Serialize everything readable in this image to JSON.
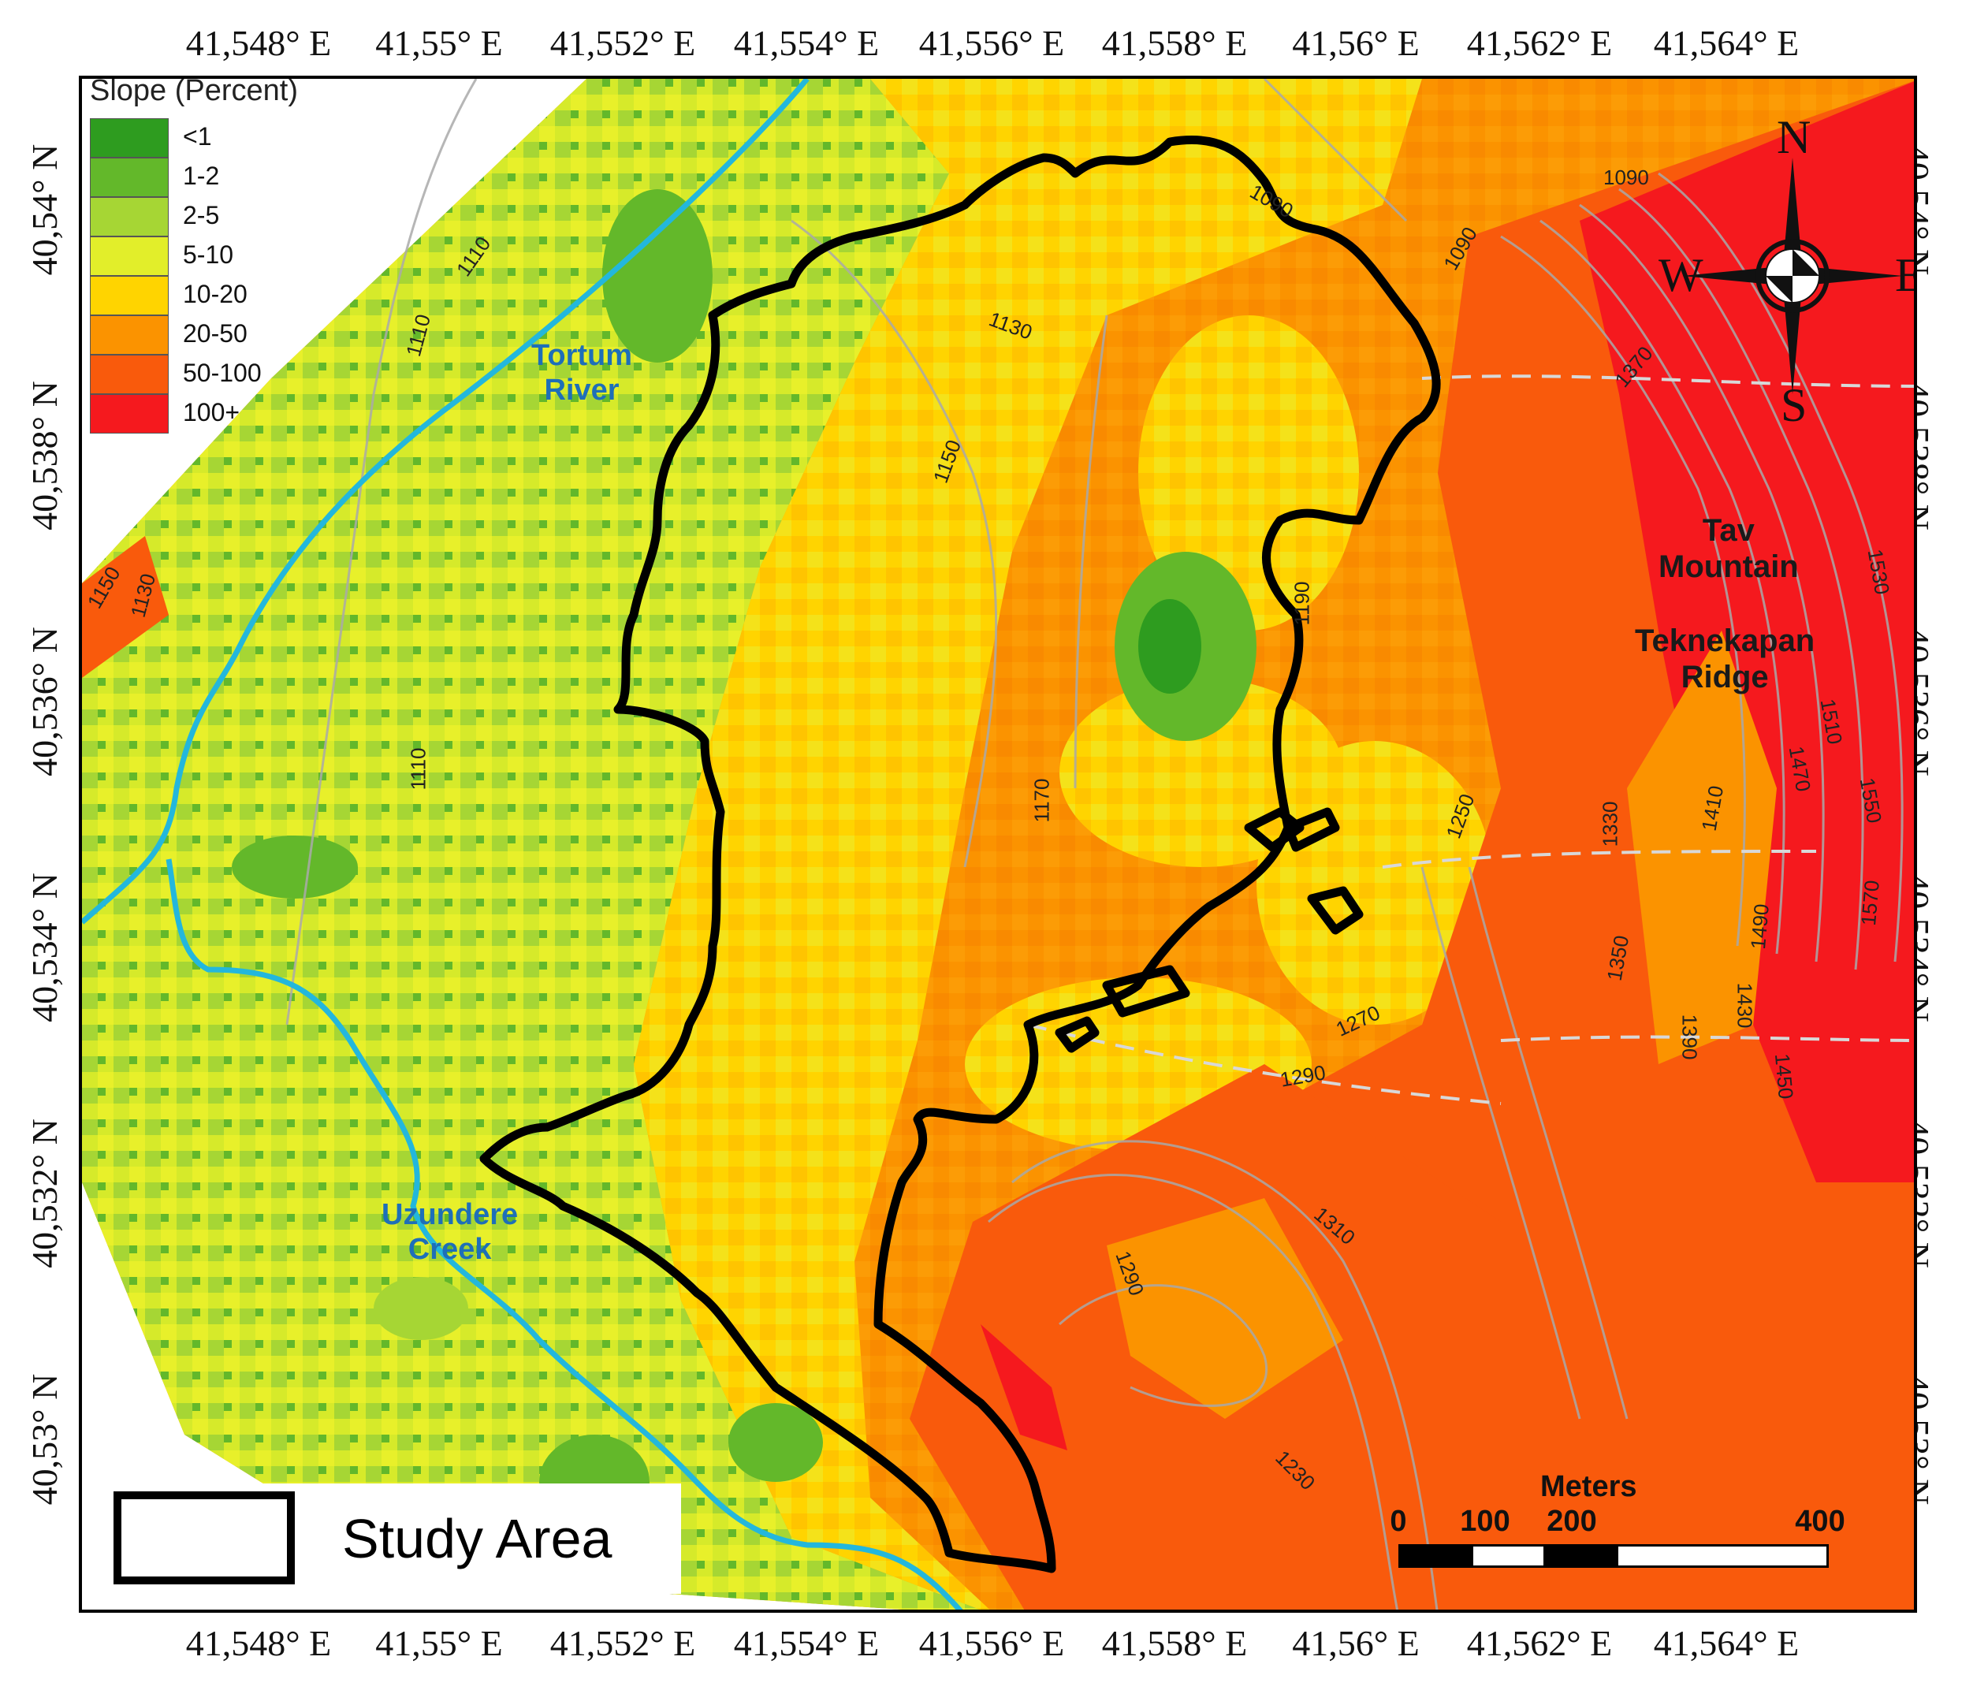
{
  "coordinates": {
    "longitudes": [
      "41,548° E",
      "41,55° E",
      "41,552° E",
      "41,554° E",
      "41,556° E",
      "41,558° E",
      "41,56° E",
      "41,562° E",
      "41,564° E"
    ],
    "latitudes": [
      "40,54° N",
      "40,538° N",
      "40,536° N",
      "40,534° N",
      "40,532° N",
      "40,53° N"
    ]
  },
  "legend": {
    "title": "Slope (Percent)",
    "classes": [
      {
        "label": "<1",
        "color": "#2e9c1f"
      },
      {
        "label": "1-2",
        "color": "#63b82a"
      },
      {
        "label": "2-5",
        "color": "#a6d634"
      },
      {
        "label": "5-10",
        "color": "#e2ee2a"
      },
      {
        "label": "10-20",
        "color": "#ffd400"
      },
      {
        "label": "20-50",
        "color": "#fb9300"
      },
      {
        "label": "50-100",
        "color": "#f95a0c"
      },
      {
        "label": "100+",
        "color": "#f5191e"
      }
    ]
  },
  "features": {
    "tortum_river": "Tortum\nRiver",
    "uzundere_creek": "Uzundere\nCreek",
    "tav_mountain": "Tav\nMountain",
    "teknekapan_ridge": "Teknekapan\nRidge",
    "river_color": "#23b7dc",
    "label_color_water": "#1e6fb8",
    "label_color_terrain": "#1a1a1a"
  },
  "contours": [
    "1110",
    "1110",
    "1090",
    "1090",
    "1090",
    "1130",
    "1150",
    "1150",
    "1130",
    "1110",
    "1170",
    "1190",
    "1250",
    "1270",
    "1290",
    "1290",
    "1310",
    "1230",
    "1330",
    "1350",
    "1370",
    "1390",
    "1410",
    "1430",
    "1450",
    "1470",
    "1490",
    "1510",
    "1530",
    "1550",
    "1570"
  ],
  "study_area_legend": "Study Area",
  "scale_bar": {
    "unit": "Meters",
    "ticks": [
      "0",
      "100",
      "200",
      "400"
    ]
  },
  "compass": {
    "n": "N",
    "s": "S",
    "e": "E",
    "w": "W"
  }
}
